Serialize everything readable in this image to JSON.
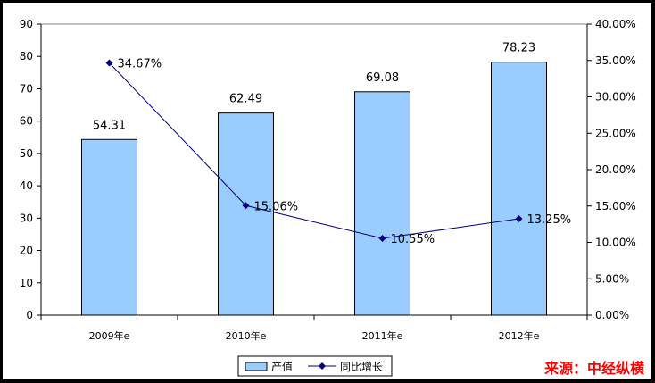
{
  "chart_data": {
    "type": "bar+line",
    "categories": [
      "2009年e",
      "2010年e",
      "2011年e",
      "2012年e"
    ],
    "series": [
      {
        "name": "产值",
        "type": "bar",
        "axis": "left",
        "values": [
          54.31,
          62.49,
          69.08,
          78.23
        ],
        "labels": [
          "54.31",
          "62.49",
          "69.08",
          "78.23"
        ],
        "color": "#99ccff",
        "border": "#000000"
      },
      {
        "name": "同比增长",
        "type": "line",
        "axis": "right",
        "values": [
          34.67,
          15.06,
          10.55,
          13.25
        ],
        "labels": [
          "34.67%",
          "15.06%",
          "10.55%",
          "13.25%"
        ],
        "color": "#000080"
      }
    ],
    "y_left": {
      "min": 0,
      "max": 90,
      "step": 10,
      "ticks": [
        "0",
        "10",
        "20",
        "30",
        "40",
        "50",
        "60",
        "70",
        "80",
        "90"
      ]
    },
    "y_right": {
      "min": 0,
      "max": 40,
      "step": 5,
      "ticks": [
        "0.00%",
        "5.00%",
        "10.00%",
        "15.00%",
        "20.00%",
        "25.00%",
        "30.00%",
        "35.00%",
        "40.00%"
      ]
    },
    "grid": false,
    "legend_position": "bottom-center"
  },
  "source_label": "来源：中经纵横"
}
